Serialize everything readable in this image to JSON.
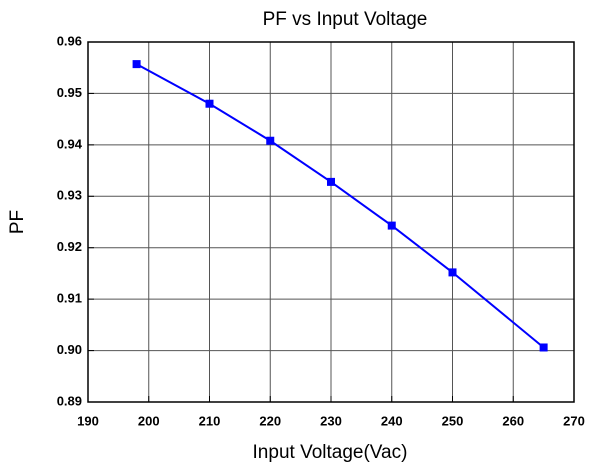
{
  "chart_data": {
    "type": "line",
    "title": "PF vs Input Voltage",
    "x_label": "Input Voltage(Vac)",
    "y_label": "PF",
    "x": [
      198,
      210,
      220,
      230,
      240,
      250,
      265
    ],
    "series": [
      {
        "name": "PF",
        "color": "#0000ff",
        "values": [
          0.9557,
          0.948,
          0.9408,
          0.9328,
          0.9243,
          0.9152,
          0.9006
        ]
      }
    ],
    "xlim": [
      190,
      270
    ],
    "xticks": [
      190,
      200,
      210,
      220,
      230,
      240,
      250,
      260,
      270
    ],
    "ylim": [
      0.89,
      0.96
    ],
    "yticks": [
      0.89,
      {
        "value": 0.9,
        "label": "0.90"
      },
      0.91,
      0.92,
      0.93,
      0.94,
      0.95,
      0.96
    ],
    "grid": true,
    "marker": "square"
  }
}
